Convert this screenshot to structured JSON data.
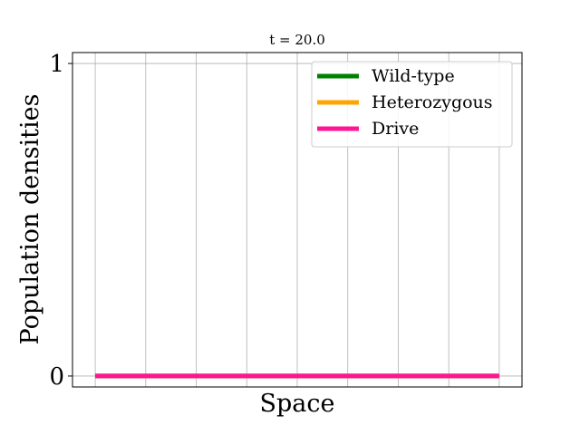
{
  "chart_data": {
    "type": "line",
    "title": "t = 20.0",
    "xlabel": "Space",
    "ylabel": "Population densities",
    "x": [
      0,
      1,
      2,
      3,
      4,
      5,
      6,
      7,
      8
    ],
    "xlim": [
      -0.45,
      8.45
    ],
    "ylim": [
      -0.035,
      1.035
    ],
    "yticks": [
      0,
      1
    ],
    "ytick_labels": [
      "0",
      "1"
    ],
    "grid": true,
    "legend_position": "top-right",
    "series": [
      {
        "name": "Wild-type",
        "color": "#008000",
        "values": [
          0,
          0,
          0,
          0,
          0,
          0,
          0,
          0,
          0
        ]
      },
      {
        "name": "Heterozygous",
        "color": "#ffa500",
        "values": [
          0,
          0,
          0,
          0,
          0,
          0,
          0,
          0,
          0
        ]
      },
      {
        "name": "Drive",
        "color": "#ff1493",
        "values": [
          0,
          0,
          0,
          0,
          0,
          0,
          0,
          0,
          0
        ]
      }
    ]
  }
}
